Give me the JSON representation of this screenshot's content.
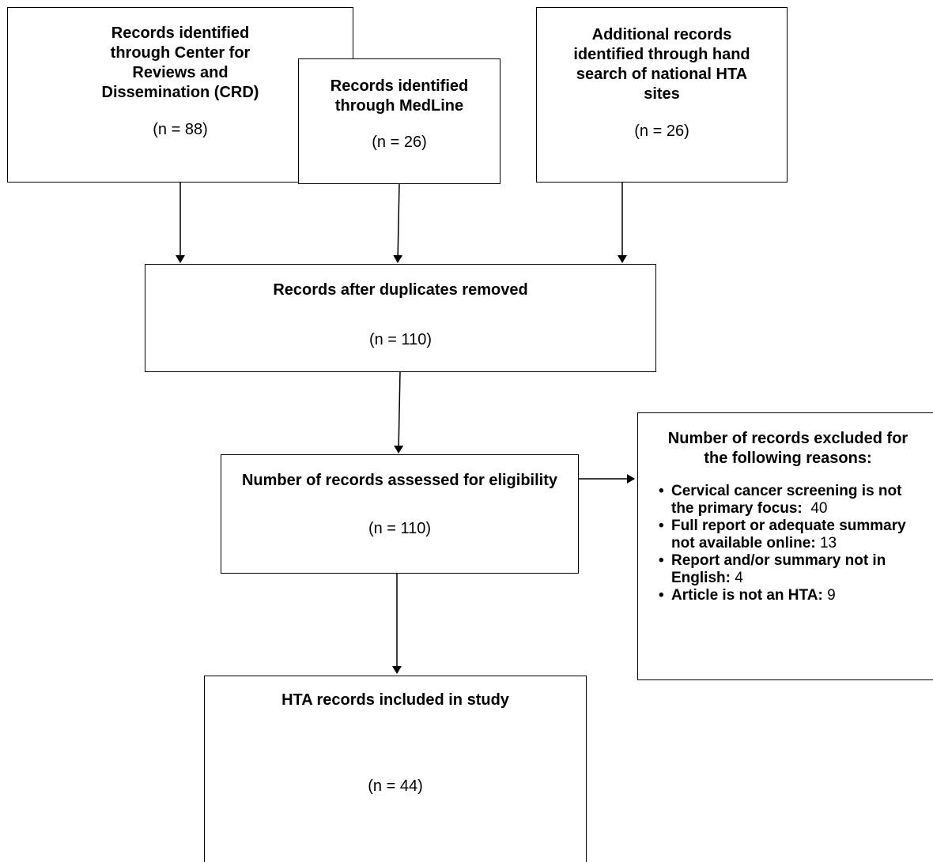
{
  "boxes": {
    "crd": {
      "title": "Records identified through Center for Reviews and Dissemination (CRD)",
      "count": "(n = 88)"
    },
    "medline": {
      "title": "Records identified through MedLine",
      "count": "(n = 26)"
    },
    "hta_sites": {
      "title": "Additional records identified through hand search of national HTA sites",
      "count": "(n = 26)"
    },
    "duplicates": {
      "title": "Records after duplicates removed",
      "count": "(n = 110)"
    },
    "assessed": {
      "title": "Number of records assessed for eligibility",
      "count": "(n = 110)"
    },
    "included": {
      "title": "HTA records included in study",
      "count": "(n = 44)"
    },
    "excluded": {
      "title": "Number of records excluded for the following reasons:",
      "reasons": [
        {
          "label": "Cervical cancer screening is not the primary focus:",
          "value": "40"
        },
        {
          "label": "Full report or adequate summary not available online:",
          "value": "13"
        },
        {
          "label": "Report and/or summary not in English:",
          "value": "4"
        },
        {
          "label": "Article is not an HTA:",
          "value": "9"
        }
      ]
    }
  }
}
